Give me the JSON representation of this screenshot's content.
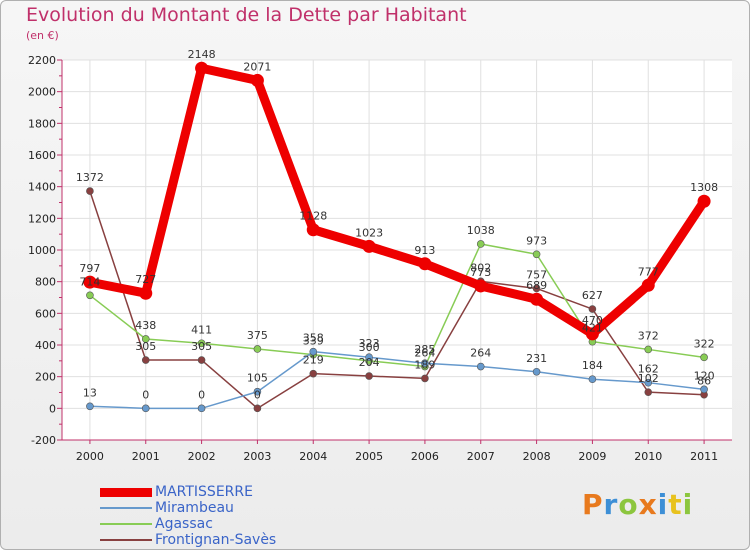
{
  "header": {
    "title": "Evolution du Montant de la Dette par Habitant",
    "subtitle": "(en €)"
  },
  "logo": {
    "letters": [
      "P",
      "r",
      "o",
      "x",
      "i",
      "t",
      "i"
    ],
    "colors": [
      "#e87a1e",
      "#3d8fd6",
      "#8cc63e",
      "#e87a1e",
      "#3d8fd6",
      "#e8c21e",
      "#8cc63e"
    ]
  },
  "chart_data": {
    "type": "line",
    "x": [
      "2000",
      "2001",
      "2002",
      "2003",
      "2004",
      "2005",
      "2006",
      "2007",
      "2008",
      "2009",
      "2010",
      "2011"
    ],
    "ylim": [
      -200,
      2200
    ],
    "yticks": [
      "-200",
      "0",
      "200",
      "400",
      "600",
      "800",
      "1000",
      "1200",
      "1400",
      "1600",
      "1800",
      "2000",
      "2200"
    ],
    "grid": true,
    "legend_position": "bottom-left",
    "series": [
      {
        "name": "MARTISSERRE",
        "color": "#ee0000",
        "values": [
          797,
          727,
          2148,
          2071,
          1128,
          1023,
          913,
          773,
          689,
          470,
          777,
          1308
        ],
        "labels": [
          "797",
          "727",
          "2148",
          "2071",
          "1128",
          "1023",
          "913",
          "773",
          "689",
          "470",
          "777",
          "1308"
        ]
      },
      {
        "name": "Mirambeau",
        "color": "#6699cc",
        "values": [
          13,
          0,
          0,
          105,
          358,
          323,
          285,
          264,
          231,
          184,
          162,
          120
        ],
        "labels": [
          "13",
          "0",
          "0",
          "105",
          "358",
          "323",
          "285",
          "264",
          "231",
          "184",
          "162",
          "120"
        ]
      },
      {
        "name": "Agassac",
        "color": "#88cc55",
        "values": [
          714,
          438,
          411,
          375,
          339,
          300,
          264,
          1038,
          973,
          421,
          372,
          322
        ],
        "labels": [
          "714",
          "438",
          "411",
          "375",
          "339",
          "300",
          "264",
          "1038",
          "973",
          "421",
          "372",
          "322"
        ]
      },
      {
        "name": "Frontignan-Savès",
        "color": "#884040",
        "values": [
          1372,
          305,
          305,
          0,
          219,
          204,
          189,
          802,
          757,
          627,
          102,
          86
        ],
        "labels": [
          "1372",
          "305",
          "305",
          "0",
          "219",
          "204",
          "189",
          "802",
          "757",
          "627",
          "102",
          "86"
        ]
      }
    ]
  }
}
